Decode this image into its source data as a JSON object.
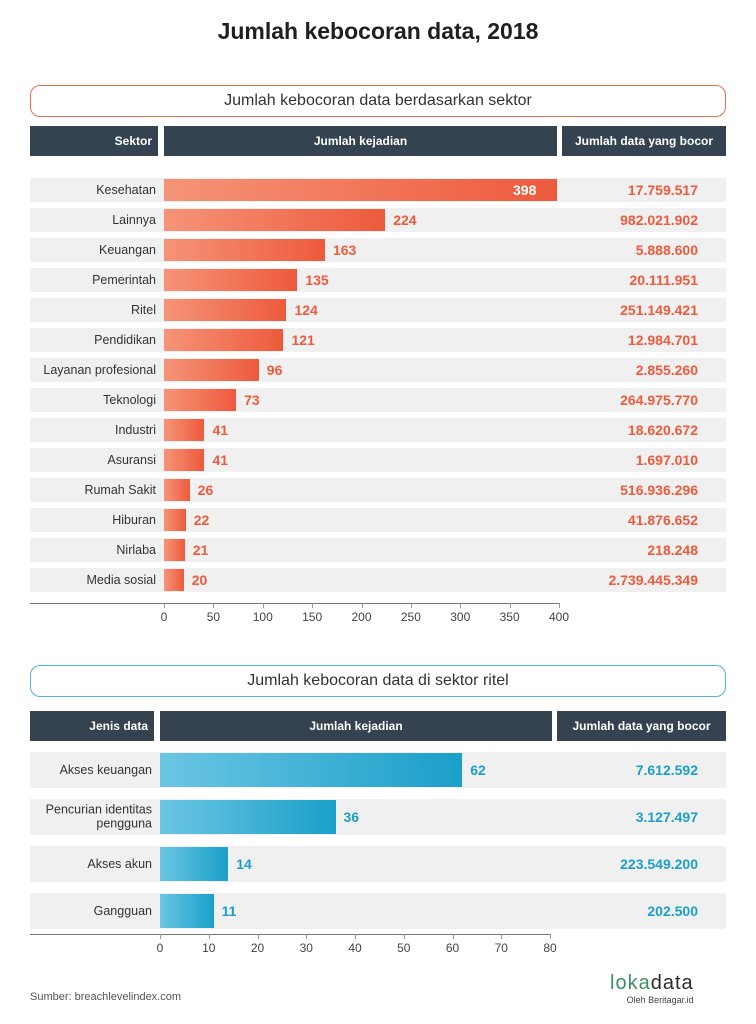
{
  "title": "Jumlah kebocoran data, 2018",
  "source": "Sumber: breachlevelindex.com",
  "logo": {
    "prefix": "loka",
    "suffix": "data",
    "sub": "Oleh Beritagar.id"
  },
  "colors": {
    "sector_bar": "#ee5a3c",
    "sector_text": "#ee5a3c",
    "retail_bar": "#1a9fc9",
    "retail_text": "#1a9fc9",
    "header": "#34434f"
  },
  "chart_data": [
    {
      "type": "bar",
      "orientation": "horizontal",
      "title": "Jumlah kebocoran data berdasarkan sektor",
      "headers": {
        "category": "Sektor",
        "value": "Jumlah kejadian",
        "extra": "Jumlah data yang bocor"
      },
      "categories": [
        "Kesehatan",
        "Lainnya",
        "Keuangan",
        "Pemerintah",
        "Ritel",
        "Pendidikan",
        "Layanan profesional",
        "Teknologi",
        "Industri",
        "Asuransi",
        "Rumah Sakit",
        "Hiburan",
        "Nirlaba",
        "Media sosial"
      ],
      "values": [
        398,
        224,
        163,
        135,
        124,
        121,
        96,
        73,
        41,
        41,
        26,
        22,
        21,
        20
      ],
      "extra_values": [
        "17.759.517",
        "982.021.902",
        "5.888.600",
        "20.111.951",
        "251.149.421",
        "12.984.701",
        "2.855.260",
        "264.975.770",
        "18.620.672",
        "1.697.010",
        "516.936.296",
        "41.876.652",
        "218.248",
        "2.739.445.349"
      ],
      "xlim": [
        0,
        400
      ],
      "ticks": [
        0,
        50,
        100,
        150,
        200,
        250,
        300,
        350,
        400
      ],
      "grid": false
    },
    {
      "type": "bar",
      "orientation": "horizontal",
      "title": "Jumlah kebocoran data di sektor ritel",
      "headers": {
        "category": "Jenis data",
        "value": "Jumlah kejadian",
        "extra": "Jumlah data yang bocor"
      },
      "categories": [
        "Akses keuangan",
        "Pencurian identitas pengguna",
        "Akses akun",
        "Gangguan"
      ],
      "values": [
        62,
        36,
        14,
        11
      ],
      "extra_values": [
        "7.612.592",
        "3.127.497",
        "223.549.200",
        "202.500"
      ],
      "xlim": [
        0,
        80
      ],
      "ticks": [
        0,
        10,
        20,
        30,
        40,
        50,
        60,
        70,
        80
      ],
      "grid": false
    }
  ]
}
